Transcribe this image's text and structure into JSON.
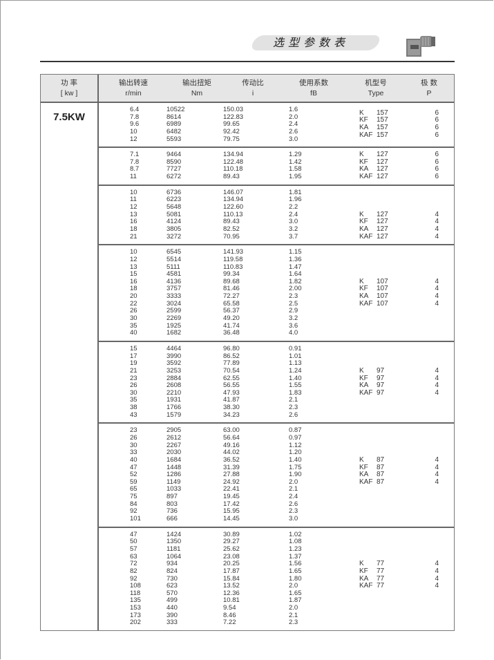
{
  "header": {
    "title": "选型参数表",
    "image": "gear-motor-icon"
  },
  "table": {
    "columns": [
      {
        "cn": "功 率",
        "unit": "[ kw ]"
      },
      {
        "cn": "输出转速",
        "unit": "r/min"
      },
      {
        "cn": "输出扭矩",
        "unit": "Nm"
      },
      {
        "cn": "传动比",
        "unit": "i"
      },
      {
        "cn": "使用系数",
        "unit": "fB"
      },
      {
        "cn": "机型号",
        "unit": "Type"
      },
      {
        "cn": "极 数",
        "unit": "P"
      }
    ],
    "power": "7.5KW",
    "groups": [
      {
        "rows": [
          [
            "6.4",
            "10522",
            "150.03",
            "1.6"
          ],
          [
            "7.8",
            "8614",
            "122.83",
            "2.0"
          ],
          [
            "9.6",
            "6989",
            "99.65",
            "2.4"
          ],
          [
            "10",
            "6482",
            "92.42",
            "2.6"
          ],
          [
            "12",
            "5593",
            "79.75",
            "3.0"
          ]
        ],
        "types": [
          [
            "K",
            "157",
            "6"
          ],
          [
            "KF",
            "157",
            "6"
          ],
          [
            "KA",
            "157",
            "6"
          ],
          [
            "KAF",
            "157",
            "6"
          ]
        ]
      },
      {
        "rows": [
          [
            "7.1",
            "9464",
            "134.94",
            "1.29"
          ],
          [
            "7.8",
            "8590",
            "122.48",
            "1.42"
          ],
          [
            "8.7",
            "7727",
            "110.18",
            "1.58"
          ],
          [
            "11",
            "6272",
            "89.43",
            "1.95"
          ]
        ],
        "types": [
          [
            "K",
            "127",
            "6"
          ],
          [
            "KF",
            "127",
            "6"
          ],
          [
            "KA",
            "127",
            "6"
          ],
          [
            "KAF",
            "127",
            "6"
          ]
        ]
      },
      {
        "rows": [
          [
            "10",
            "6736",
            "146.07",
            "1.81"
          ],
          [
            "11",
            "6223",
            "134.94",
            "1.96"
          ],
          [
            "12",
            "5648",
            "122.60",
            "2.2"
          ],
          [
            "13",
            "5081",
            "110.13",
            "2.4"
          ],
          [
            "16",
            "4124",
            "89.43",
            "3.0"
          ],
          [
            "18",
            "3805",
            "82.52",
            "3.2"
          ],
          [
            "21",
            "3272",
            "70.95",
            "3.7"
          ]
        ],
        "types": [
          [
            "K",
            "127",
            "4"
          ],
          [
            "KF",
            "127",
            "4"
          ],
          [
            "KA",
            "127",
            "4"
          ],
          [
            "KAF",
            "127",
            "4"
          ]
        ]
      },
      {
        "rows": [
          [
            "10",
            "6545",
            "141.93",
            "1.15"
          ],
          [
            "12",
            "5514",
            "119.58",
            "1.36"
          ],
          [
            "13",
            "5111",
            "110.83",
            "1.47"
          ],
          [
            "15",
            "4581",
            "99.34",
            "1.64"
          ],
          [
            "16",
            "4136",
            "89.68",
            "1.82"
          ],
          [
            "18",
            "3757",
            "81.46",
            "2.00"
          ],
          [
            "20",
            "3333",
            "72.27",
            "2.3"
          ],
          [
            "22",
            "3024",
            "65.58",
            "2.5"
          ],
          [
            "26",
            "2599",
            "56.37",
            "2.9"
          ],
          [
            "30",
            "2269",
            "49.20",
            "3.2"
          ],
          [
            "35",
            "1925",
            "41.74",
            "3.6"
          ],
          [
            "40",
            "1682",
            "36.48",
            "4.0"
          ]
        ],
        "types": [
          [
            "K",
            "107",
            "4"
          ],
          [
            "KF",
            "107",
            "4"
          ],
          [
            "KA",
            "107",
            "4"
          ],
          [
            "KAF",
            "107",
            "4"
          ]
        ]
      },
      {
        "rows": [
          [
            "15",
            "4464",
            "96.80",
            "0.91"
          ],
          [
            "17",
            "3990",
            "86.52",
            "1.01"
          ],
          [
            "19",
            "3592",
            "77.89",
            "1.13"
          ],
          [
            "21",
            "3253",
            "70.54",
            "1.24"
          ],
          [
            "23",
            "2884",
            "62.55",
            "1.40"
          ],
          [
            "26",
            "2608",
            "56.55",
            "1.55"
          ],
          [
            "30",
            "2210",
            "47.93",
            "1.83"
          ],
          [
            "35",
            "1931",
            "41.87",
            "2.1"
          ],
          [
            "38",
            "1766",
            "38.30",
            "2.3"
          ],
          [
            "43",
            "1579",
            "34.23",
            "2.6"
          ]
        ],
        "types": [
          [
            "K",
            "97",
            "4"
          ],
          [
            "KF",
            "97",
            "4"
          ],
          [
            "KA",
            "97",
            "4"
          ],
          [
            "KAF",
            "97",
            "4"
          ]
        ]
      },
      {
        "rows": [
          [
            "23",
            "2905",
            "63.00",
            "0.87"
          ],
          [
            "26",
            "2612",
            "56.64",
            "0.97"
          ],
          [
            "30",
            "2267",
            "49.16",
            "1.12"
          ],
          [
            "33",
            "2030",
            "44.02",
            "1.20"
          ],
          [
            "40",
            "1684",
            "36.52",
            "1.40"
          ],
          [
            "47",
            "1448",
            "31.39",
            "1.75"
          ],
          [
            "52",
            "1286",
            "27.88",
            "1.90"
          ],
          [
            "59",
            "1149",
            "24.92",
            "2.0"
          ],
          [
            "65",
            "1033",
            "22.41",
            "2.1"
          ],
          [
            "75",
            "897",
            "19.45",
            "2.4"
          ],
          [
            "84",
            "803",
            "17.42",
            "2.6"
          ],
          [
            "92",
            "736",
            "15.95",
            "2.3"
          ],
          [
            "101",
            "666",
            "14.45",
            "3.0"
          ]
        ],
        "types": [
          [
            "K",
            "87",
            "4"
          ],
          [
            "KF",
            "87",
            "4"
          ],
          [
            "KA",
            "87",
            "4"
          ],
          [
            "KAF",
            "87",
            "4"
          ]
        ]
      },
      {
        "rows": [
          [
            "47",
            "1424",
            "30.89",
            "1.02"
          ],
          [
            "50",
            "1350",
            "29.27",
            "1.08"
          ],
          [
            "57",
            "1181",
            "25.62",
            "1.23"
          ],
          [
            "63",
            "1064",
            "23.08",
            "1.37"
          ],
          [
            "72",
            "934",
            "20.25",
            "1.56"
          ],
          [
            "82",
            "824",
            "17.87",
            "1.65"
          ],
          [
            "92",
            "730",
            "15.84",
            "1.80"
          ],
          [
            "108",
            "623",
            "13.52",
            "2.0"
          ],
          [
            "118",
            "570",
            "12.36",
            "1.65"
          ],
          [
            "135",
            "499",
            "10.81",
            "1.87"
          ],
          [
            "153",
            "440",
            "9.54",
            "2.0"
          ],
          [
            "173",
            "390",
            "8.46",
            "2.1"
          ],
          [
            "202",
            "333",
            "7.22",
            "2.3"
          ]
        ],
        "types": [
          [
            "K",
            "77",
            "4"
          ],
          [
            "KF",
            "77",
            "4"
          ],
          [
            "KA",
            "77",
            "4"
          ],
          [
            "KAF",
            "77",
            "4"
          ]
        ]
      }
    ]
  }
}
